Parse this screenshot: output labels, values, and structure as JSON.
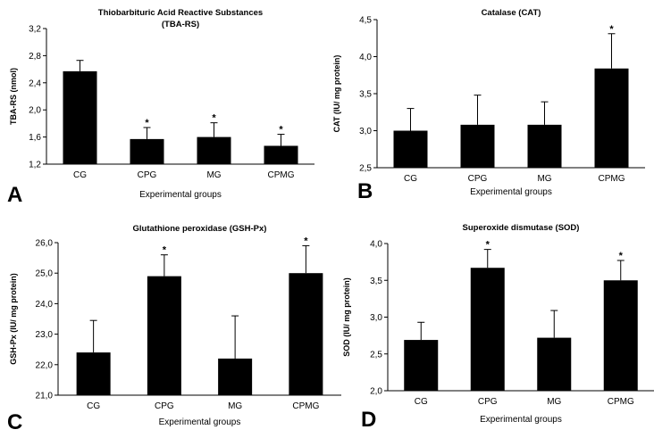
{
  "chart_data": [
    {
      "panel_letter": "A",
      "type": "bar",
      "title": "Thiobarbituric Acid Reactive Substances",
      "subtitle": "(TBA-RS)",
      "xlabel": "Experimental groups",
      "ylabel": "TBA-RS (nmol)",
      "categories": [
        "CG",
        "CPG",
        "MG",
        "CPMG"
      ],
      "values": [
        2.57,
        1.57,
        1.6,
        1.47
      ],
      "errors": [
        0.16,
        0.17,
        0.21,
        0.17
      ],
      "significant": [
        "",
        "*",
        "*",
        "*"
      ],
      "ylim": [
        1.2,
        3.2
      ],
      "yticks": [
        "1,2",
        "1,6",
        "2,0",
        "2,4",
        "2,8",
        "3,2"
      ]
    },
    {
      "panel_letter": "B",
      "type": "bar",
      "title": "Catalase (CAT)",
      "subtitle": "",
      "xlabel": "Experimental groups",
      "ylabel": "CAT (IU/ mg protein)",
      "categories": [
        "CG",
        "CPG",
        "MG",
        "CPMG"
      ],
      "values": [
        3.0,
        3.08,
        3.08,
        3.84
      ],
      "errors": [
        0.3,
        0.4,
        0.31,
        0.47
      ],
      "significant": [
        "",
        "",
        "",
        "*"
      ],
      "ylim": [
        2.5,
        4.5
      ],
      "yticks": [
        "2,5",
        "3,0",
        "3,5",
        "4,0",
        "4,5"
      ]
    },
    {
      "panel_letter": "C",
      "type": "bar",
      "title": "Glutathione peroxidase (GSH-Px)",
      "subtitle": "",
      "xlabel": "Experimental groups",
      "ylabel": "GSH-Px (IU/ mg protein)",
      "categories": [
        "CG",
        "CPG",
        "MG",
        "CPMG"
      ],
      "values": [
        22.4,
        24.9,
        22.2,
        25.0
      ],
      "errors": [
        1.05,
        0.7,
        1.4,
        0.9
      ],
      "significant": [
        "",
        "*",
        "",
        "*"
      ],
      "ylim": [
        21,
        26
      ],
      "yticks": [
        "21,0",
        "22,0",
        "23,0",
        "24,0",
        "25,0",
        "26,0"
      ]
    },
    {
      "panel_letter": "D",
      "type": "bar",
      "title": "Superoxide dismutase (SOD)",
      "subtitle": "",
      "xlabel": "Experimental groups",
      "ylabel": "SOD (IU/ mg protein)",
      "categories": [
        "CG",
        "CPG",
        "MG",
        "CPMG"
      ],
      "values": [
        2.69,
        3.67,
        2.72,
        3.5
      ],
      "errors": [
        0.24,
        0.25,
        0.37,
        0.27
      ],
      "significant": [
        "",
        "*",
        "",
        "*"
      ],
      "ylim": [
        2.0,
        4.0
      ],
      "yticks": [
        "2,0",
        "2,5",
        "3,0",
        "3,5",
        "4,0"
      ]
    }
  ]
}
